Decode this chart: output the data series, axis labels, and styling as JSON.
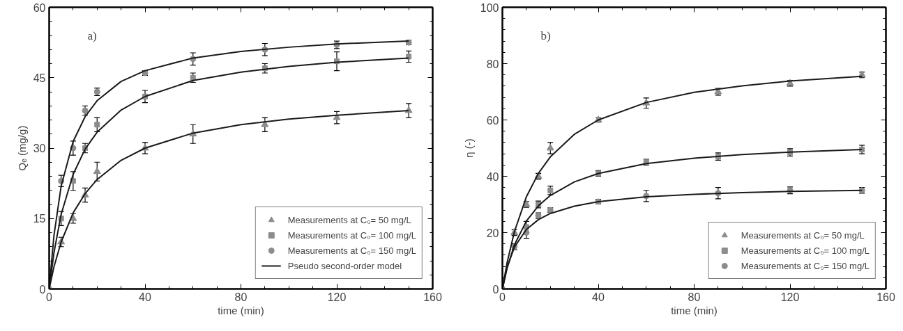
{
  "chart_data": [
    {
      "type": "scatter",
      "annotations": [
        "a)"
      ],
      "xlabel": "time (min)",
      "ylabel": "Qₑ (mg/g)",
      "xlim": [
        0,
        160
      ],
      "ylim": [
        0,
        60
      ],
      "xticks": [
        0,
        40,
        80,
        120,
        160
      ],
      "yticks": [
        0,
        15,
        30,
        45,
        60
      ],
      "grid": false,
      "legend": "bottom right",
      "x": [
        0,
        5,
        10,
        15,
        20,
        40,
        60,
        90,
        120,
        150
      ],
      "series": [
        {
          "name": "Measurements at C₀= 50 mg/L",
          "type": "scatter",
          "marker": "triangle",
          "color": "#8c8c8c",
          "values": [
            null,
            10,
            15,
            20,
            25,
            30,
            33,
            35,
            36.5,
            38
          ],
          "errors": [
            null,
            1,
            1,
            1.5,
            2,
            1.2,
            2,
            1.5,
            1.3,
            1.5
          ]
        },
        {
          "name": "Measurements at C₀= 100 mg/L",
          "type": "scatter",
          "marker": "square",
          "color": "#8c8c8c",
          "values": [
            null,
            15,
            23,
            30,
            35,
            41,
            45,
            47,
            48.5,
            49.5
          ],
          "errors": [
            null,
            1.5,
            2,
            1,
            1.5,
            1.3,
            1,
            1,
            2,
            1.2
          ]
        },
        {
          "name": "Measurements at C₀= 150 mg/L",
          "type": "scatter",
          "marker": "circle",
          "color": "#8c8c8c",
          "values": [
            0,
            23,
            30,
            38,
            42,
            46,
            49,
            51,
            52,
            52.5
          ],
          "errors": [
            null,
            1.2,
            1.5,
            1,
            0.8,
            0.5,
            1.3,
            1.3,
            0.8,
            0.5
          ]
        },
        {
          "name": "Pseudo second-order model",
          "type": "line",
          "line_style": "solid",
          "color": "#1a1a1a",
          "x": [
            0,
            2,
            5,
            10,
            15,
            20,
            30,
            40,
            60,
            80,
            100,
            120,
            150
          ],
          "values": [
            0,
            4.7,
            10,
            16.2,
            20.3,
            23.3,
            27.4,
            30,
            33.2,
            35.0,
            36.2,
            37.0,
            38.0
          ]
        },
        {
          "type": "line",
          "line_style": "solid",
          "color": "#1a1a1a",
          "x": [
            0,
            2,
            5,
            10,
            15,
            20,
            30,
            40,
            60,
            80,
            100,
            120,
            150
          ],
          "values": [
            0,
            7.7,
            15.9,
            24.4,
            29.8,
            33.4,
            38.1,
            41.0,
            44.4,
            46.2,
            47.4,
            48.3,
            49.2
          ]
        },
        {
          "type": "line",
          "line_style": "solid",
          "color": "#1a1a1a",
          "x": [
            0,
            2,
            5,
            10,
            15,
            20,
            30,
            40,
            60,
            80,
            100,
            120,
            150
          ],
          "values": [
            0,
            11.4,
            21.9,
            31.4,
            36.7,
            40.1,
            44.2,
            46.5,
            49.2,
            50.6,
            51.5,
            52.2,
            52.8
          ]
        }
      ]
    },
    {
      "type": "scatter",
      "annotations": [
        "b)"
      ],
      "xlabel": "time (min)",
      "ylabel": "η (-)",
      "xlim": [
        0,
        160
      ],
      "ylim": [
        0,
        100
      ],
      "xticks": [
        0,
        40,
        80,
        120,
        160
      ],
      "yticks": [
        0,
        20,
        40,
        60,
        80,
        100
      ],
      "grid": false,
      "legend": "bottom right",
      "x": [
        0,
        5,
        10,
        15,
        20,
        40,
        60,
        90,
        120,
        150
      ],
      "series": [
        {
          "name": "Measurements at C₀= 50 mg/L",
          "type": "scatter",
          "marker": "triangle",
          "color": "#8c8c8c",
          "values": [
            null,
            20,
            30,
            40,
            50,
            60,
            66,
            70,
            73,
            76
          ],
          "errors": [
            null,
            1,
            1,
            1,
            2,
            0.8,
            1.8,
            1.2,
            1,
            1
          ]
        },
        {
          "name": "Measurements at C₀= 100 mg/L",
          "type": "scatter",
          "marker": "square",
          "color": "#8c8c8c",
          "values": [
            null,
            null,
            22,
            30,
            35,
            41,
            45,
            47,
            48.5,
            49.5
          ],
          "errors": [
            null,
            null,
            2,
            1.2,
            1.5,
            1,
            1,
            1.3,
            1.3,
            1.5
          ]
        },
        {
          "name": "Measurements at C₀= 150 mg/L",
          "type": "scatter",
          "marker": "circle",
          "color": "#8c8c8c",
          "values": [
            0,
            15,
            20,
            26,
            28,
            31,
            33,
            34,
            35,
            35
          ],
          "errors": [
            null,
            1,
            2,
            1,
            0.8,
            0.8,
            2,
            2,
            1.2,
            1
          ]
        },
        {
          "type": "line",
          "line_style": "solid",
          "color": "#1a1a1a",
          "x": [
            0,
            2,
            5,
            10,
            15,
            20,
            30,
            40,
            60,
            80,
            100,
            120,
            150
          ],
          "values": [
            0,
            9.5,
            20.3,
            32.7,
            41.0,
            46.9,
            54.9,
            60.0,
            66.2,
            69.8,
            72.1,
            73.8,
            75.5
          ]
        },
        {
          "type": "line",
          "line_style": "solid",
          "color": "#1a1a1a",
          "x": [
            0,
            2,
            5,
            10,
            15,
            20,
            30,
            40,
            60,
            80,
            100,
            120,
            150
          ],
          "values": [
            0,
            7.5,
            15.6,
            24.1,
            29.5,
            33.2,
            38.0,
            41.0,
            44.5,
            46.4,
            47.7,
            48.6,
            49.5
          ]
        },
        {
          "type": "line",
          "line_style": "solid",
          "color": "#1a1a1a",
          "x": [
            0,
            2,
            5,
            10,
            15,
            20,
            30,
            40,
            60,
            80,
            100,
            120,
            150
          ],
          "values": [
            0,
            7.8,
            14.8,
            21.1,
            24.6,
            26.8,
            29.4,
            31.0,
            32.7,
            33.6,
            34.2,
            34.6,
            35.0
          ]
        }
      ]
    }
  ]
}
